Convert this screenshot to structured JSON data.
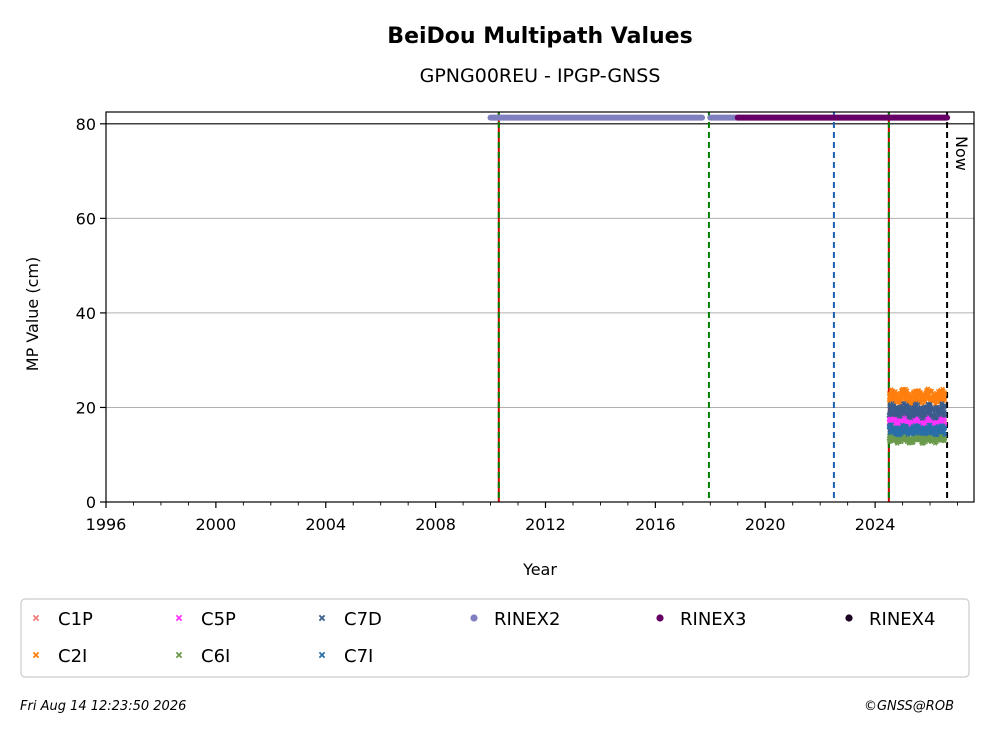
{
  "chart_data": {
    "type": "scatter",
    "title": "BeiDou Multipath Values",
    "subtitle": "GPNG00REU - IPGP-GNSS",
    "xlabel": "Year",
    "ylabel": "MP Value (cm)",
    "xlim": [
      1996,
      2027.6
    ],
    "ylim": [
      0,
      82.5
    ],
    "x_ticks": [
      "1996",
      "2000",
      "2004",
      "2008",
      "2012",
      "2016",
      "2020",
      "2024"
    ],
    "y_ticks": [
      "0",
      "20",
      "40",
      "60",
      "80"
    ],
    "grid": "horizontal",
    "now_label": "Now",
    "now_year": 2026.62,
    "event_lines": [
      {
        "x": 2010.3,
        "style": "green-red"
      },
      {
        "x": 2017.95,
        "style": "green"
      },
      {
        "x": 2022.5,
        "style": "blue"
      },
      {
        "x": 2024.5,
        "style": "green-red"
      }
    ],
    "rinex_bars": [
      {
        "series": "RINEX2",
        "start": 2010.0,
        "end": 2017.7,
        "y": 81.3
      },
      {
        "series": "RINEX2",
        "start": 2018.0,
        "end": 2019.0,
        "y": 81.3
      },
      {
        "series": "RINEX3",
        "start": 2019.0,
        "end": 2026.62,
        "y": 81.3
      }
    ],
    "series": [
      {
        "name": "C1P",
        "color": "#f08080",
        "marker": "x",
        "x_start": 2024.5,
        "x_end": 2026.55,
        "y_mean": 16.5,
        "y_spread": 1.2
      },
      {
        "name": "C2I",
        "color": "#ff7f0e",
        "marker": "x",
        "x_start": 2024.5,
        "x_end": 2026.55,
        "y_mean": 22.3,
        "y_spread": 1.3
      },
      {
        "name": "C5P",
        "color": "#ff33ff",
        "marker": "x",
        "x_start": 2024.5,
        "x_end": 2026.55,
        "y_mean": 17.3,
        "y_spread": 1.0
      },
      {
        "name": "C6I",
        "color": "#6b9a4c",
        "marker": "x",
        "x_start": 2024.5,
        "x_end": 2026.55,
        "y_mean": 13.5,
        "y_spread": 0.9
      },
      {
        "name": "C7D",
        "color": "#3b5c8c",
        "marker": "x",
        "x_start": 2024.5,
        "x_end": 2026.55,
        "y_mean": 19.3,
        "y_spread": 1.2
      },
      {
        "name": "C7I",
        "color": "#2a6fa8",
        "marker": "x",
        "x_start": 2024.5,
        "x_end": 2026.55,
        "y_mean": 15.2,
        "y_spread": 0.9
      }
    ],
    "legend": [
      {
        "label": "C1P",
        "color": "#f08080",
        "marker": "x"
      },
      {
        "label": "C2I",
        "color": "#ff7f0e",
        "marker": "x"
      },
      {
        "label": "C5P",
        "color": "#ff33ff",
        "marker": "x"
      },
      {
        "label": "C6I",
        "color": "#6b9a4c",
        "marker": "x"
      },
      {
        "label": "C7D",
        "color": "#3b5c8c",
        "marker": "x"
      },
      {
        "label": "C7I",
        "color": "#2a6fa8",
        "marker": "x"
      },
      {
        "label": "RINEX2",
        "color": "#7f7fbf",
        "marker": "dot"
      },
      {
        "label": "RINEX3",
        "color": "#660066",
        "marker": "dot"
      },
      {
        "label": "RINEX4",
        "color": "#1a0022",
        "marker": "dot"
      }
    ],
    "legend_placement": "bottom"
  },
  "footer": {
    "timestamp": "Fri Aug 14 12:23:50 2026",
    "copyright": "©GNSS@ROB"
  }
}
